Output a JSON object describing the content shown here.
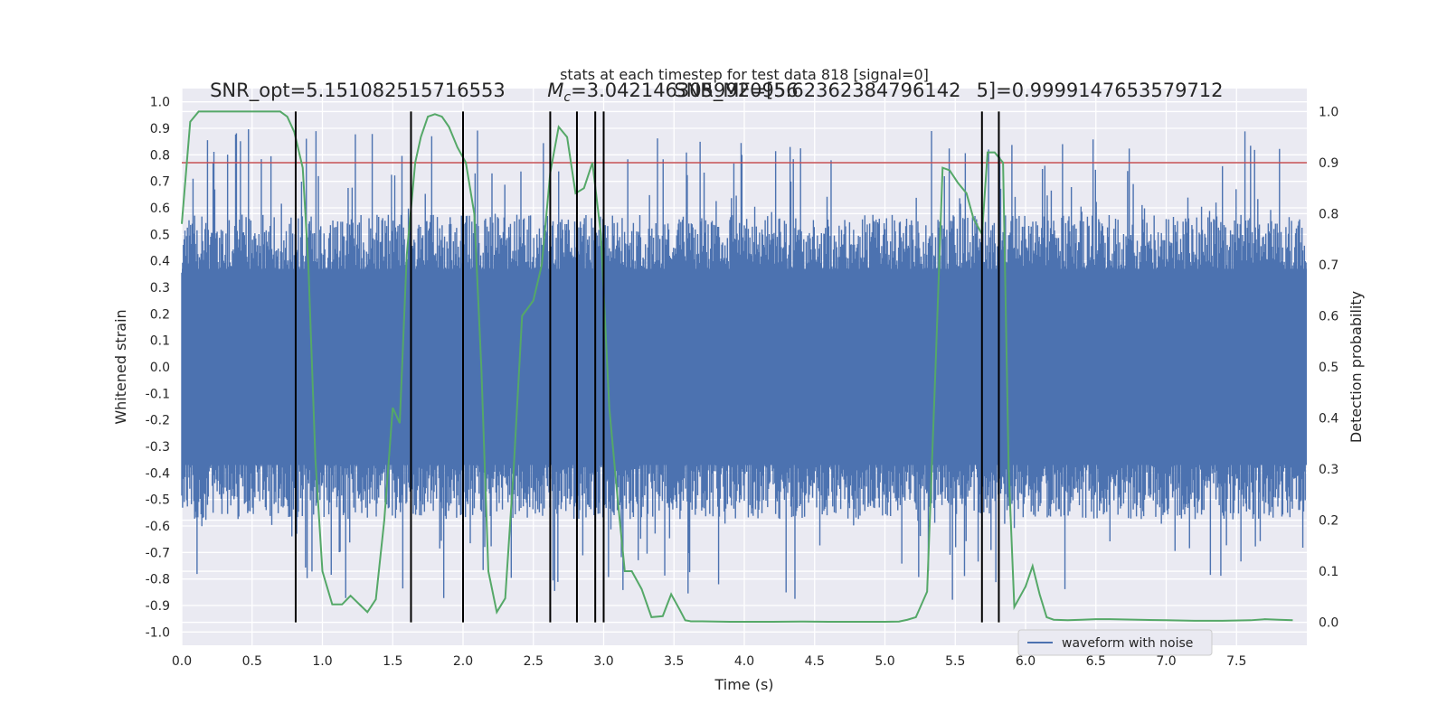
{
  "chart_data": {
    "type": "line",
    "title": "stats at each timestep for test data 818 [signal=0]",
    "xlabel": "Time (s)",
    "ylabel": "Whitened strain",
    "ylabel_right": "Detection probability",
    "xlim": [
      0,
      8
    ],
    "ylim": [
      -1.05,
      1.05
    ],
    "ylim_right": [
      -0.045,
      1.045
    ],
    "x_ticks": [
      0.0,
      0.5,
      1.0,
      1.5,
      2.0,
      2.5,
      3.0,
      3.5,
      4.0,
      4.5,
      5.0,
      5.5,
      6.0,
      6.5,
      7.0,
      7.5
    ],
    "x_tick_labels": [
      "0.0",
      "0.5",
      "1.0",
      "1.5",
      "2.0",
      "2.5",
      "3.0",
      "3.5",
      "4.0",
      "4.5",
      "5.0",
      "5.5",
      "6.0",
      "6.5",
      "7.0",
      "7.5"
    ],
    "y_ticks": [
      1.0,
      0.9,
      0.8,
      0.7,
      0.6,
      0.5,
      0.4,
      0.3,
      0.2,
      0.1,
      0.0,
      -0.1,
      -0.2,
      -0.3,
      -0.4,
      -0.5,
      -0.6,
      -0.7,
      -0.8,
      -0.9,
      -1.0
    ],
    "y_tick_labels": [
      "1.0",
      "0.9",
      "0.8",
      "0.7",
      "0.6",
      "0.5",
      "0.4",
      "0.3",
      "0.2",
      "0.1",
      "0.0",
      "-0.1",
      "-0.2",
      "-0.3",
      "-0.4",
      "-0.5",
      "-0.6",
      "-0.7",
      "-0.8",
      "-0.9",
      "-1.0"
    ],
    "y_ticks_right": [
      1.0,
      0.9,
      0.8,
      0.7,
      0.6,
      0.5,
      0.4,
      0.3,
      0.2,
      0.1,
      0.0
    ],
    "y_tick_labels_right": [
      "1.0",
      "0.9",
      "0.8",
      "0.7",
      "0.6",
      "0.5",
      "0.4",
      "0.3",
      "0.2",
      "0.1",
      "0.0"
    ],
    "annotations": [
      {
        "id": "snr",
        "text": "SNR_opt=5.151082515716553",
        "x": 0.2,
        "y": 1.02
      },
      {
        "id": "mc",
        "text": "M",
        "sub": "c",
        "rest": "=3.0421463059920956",
        "x": 2.6,
        "y": 1.02
      },
      {
        "id": "snrmf",
        "text": "SNR_MF=[5.62362384796142",
        "x": 3.5,
        "y": 1.02
      },
      {
        "id": "sval",
        "text": "5]=0.9999147653579712",
        "x": 5.65,
        "y": 1.02
      }
    ],
    "threshold": {
      "value": 0.9,
      "axis": "right",
      "color": "#c44e52"
    },
    "vertical_lines": [
      0.81,
      1.63,
      2.0,
      2.62,
      2.81,
      2.94,
      3.0,
      5.69,
      5.81
    ],
    "series": [
      {
        "name": "waveform with noise",
        "axis": "left",
        "color": "#4c72b0",
        "core_envelope": [
          0.42,
          -0.42
        ],
        "max_abs_spike": 1.0
      },
      {
        "name": "detection probability",
        "axis": "right",
        "color": "#55a868",
        "x": [
          0.0,
          0.06,
          0.12,
          0.2,
          0.3,
          0.4,
          0.5,
          0.6,
          0.7,
          0.75,
          0.8,
          0.86,
          0.9,
          0.95,
          1.0,
          1.07,
          1.14,
          1.2,
          1.26,
          1.32,
          1.38,
          1.44,
          1.5,
          1.55,
          1.6,
          1.66,
          1.7,
          1.75,
          1.8,
          1.85,
          1.9,
          1.96,
          2.02,
          2.08,
          2.13,
          2.18,
          2.24,
          2.3,
          2.36,
          2.42,
          2.5,
          2.56,
          2.62,
          2.68,
          2.74,
          2.8,
          2.86,
          2.92,
          2.98,
          3.04,
          3.1,
          3.15,
          3.2,
          3.27,
          3.34,
          3.42,
          3.48,
          3.54,
          3.58,
          3.62,
          3.7,
          3.8,
          3.9,
          4.0,
          4.2,
          4.4,
          4.6,
          4.8,
          5.0,
          5.1,
          5.16,
          5.22,
          5.3,
          5.36,
          5.41,
          5.46,
          5.52,
          5.58,
          5.63,
          5.69,
          5.73,
          5.78,
          5.84,
          5.88,
          5.92,
          5.96,
          6.0,
          6.05,
          6.1,
          6.15,
          6.2,
          6.3,
          6.4,
          6.5,
          6.6,
          6.8,
          7.0,
          7.2,
          7.4,
          7.6,
          7.7,
          7.8,
          7.9
        ],
        "y": [
          0.78,
          0.98,
          1.0,
          1.0,
          1.0,
          1.0,
          1.0,
          1.0,
          1.0,
          0.99,
          0.96,
          0.89,
          0.7,
          0.32,
          0.1,
          0.035,
          0.035,
          0.052,
          0.036,
          0.02,
          0.045,
          0.2,
          0.42,
          0.39,
          0.72,
          0.9,
          0.95,
          0.99,
          0.995,
          0.99,
          0.97,
          0.93,
          0.9,
          0.8,
          0.5,
          0.1,
          0.02,
          0.047,
          0.3,
          0.6,
          0.63,
          0.7,
          0.88,
          0.97,
          0.95,
          0.84,
          0.85,
          0.9,
          0.76,
          0.42,
          0.24,
          0.1,
          0.1,
          0.065,
          0.01,
          0.012,
          0.055,
          0.025,
          0.004,
          0.002,
          0.002,
          0.0015,
          0.001,
          0.001,
          0.001,
          0.0015,
          0.001,
          0.001,
          0.001,
          0.0015,
          0.005,
          0.01,
          0.06,
          0.5,
          0.89,
          0.885,
          0.86,
          0.84,
          0.79,
          0.76,
          0.92,
          0.92,
          0.9,
          0.3,
          0.03,
          0.05,
          0.07,
          0.11,
          0.055,
          0.01,
          0.005,
          0.004,
          0.005,
          0.006,
          0.006,
          0.005,
          0.004,
          0.003,
          0.003,
          0.004,
          0.006,
          0.005,
          0.004
        ]
      }
    ],
    "legend": {
      "entries": [
        "waveform with noise"
      ],
      "location": "lower-right"
    }
  }
}
